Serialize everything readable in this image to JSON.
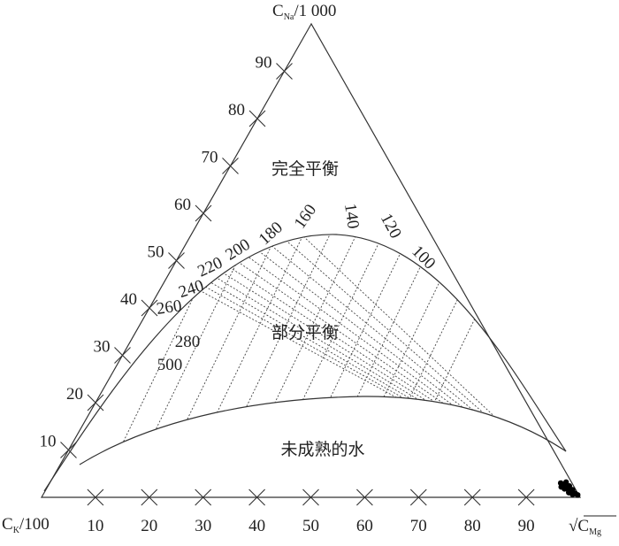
{
  "chart_data": {
    "type": "ternary",
    "corners": {
      "top": {
        "main": "C",
        "sub": "Na",
        "suffix": "/1 000"
      },
      "left": {
        "main": "C",
        "sub": "K",
        "suffix": "/100"
      },
      "right": {
        "main": "√C",
        "sub": "Mg"
      }
    },
    "left_ticks": [
      10,
      20,
      30,
      40,
      50,
      60,
      70,
      80,
      90
    ],
    "bottom_ticks": [
      10,
      20,
      30,
      40,
      50,
      60,
      70,
      80,
      90
    ],
    "regions": [
      "完全平衡",
      "部分平衡",
      "未成熟的水"
    ],
    "isotherm_labels": [
      "100",
      "120",
      "140",
      "160",
      "180",
      "200",
      "220",
      "240",
      "260",
      "280",
      "500"
    ],
    "points": {
      "na": [
        0.8,
        1.2,
        1.6,
        2.0,
        2.4,
        1.0,
        2.8,
        3.2,
        1.8,
        0.6,
        2.2,
        3.0,
        1.4,
        0.5
      ],
      "k": [
        0.5,
        0.9,
        0.6,
        1.2,
        0.8,
        1.6,
        1.5,
        1.0,
        2.0,
        1.1,
        2.4,
        2.1,
        1.4,
        0.2
      ],
      "mg": [
        98.7,
        97.9,
        97.8,
        96.8,
        96.8,
        97.4,
        95.7,
        95.8,
        96.2,
        98.3,
        95.4,
        94.9,
        97.2,
        99.3
      ],
      "color": "#000000"
    }
  }
}
